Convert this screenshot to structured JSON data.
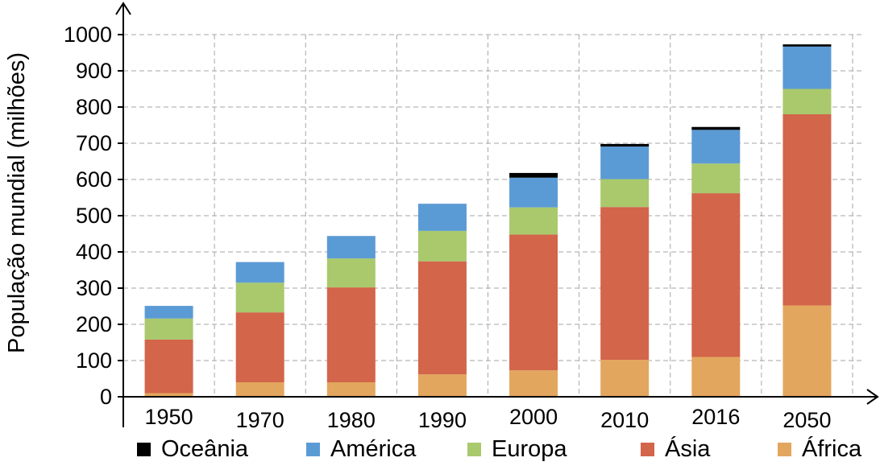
{
  "colors": {
    "Oceânia": "#000000",
    "América": "#5b9bd5",
    "Europa": "#a9c96c",
    "Ásia": "#d2654a",
    "África": "#e3a65e"
  },
  "chart_data": {
    "type": "bar",
    "stacked": true,
    "ylabel": "População mundial (milhões)",
    "ylim": [
      0,
      1000
    ],
    "yticks": [
      0,
      100,
      200,
      300,
      400,
      500,
      600,
      700,
      800,
      900,
      1000
    ],
    "grid": true,
    "legend_position": "bottom",
    "categories": [
      "1950",
      "1970",
      "1980",
      "1990",
      "2000",
      "2010",
      "2016",
      "2050"
    ],
    "series": [
      {
        "name": "África",
        "values": [
          10,
          40,
          40,
          62,
          73,
          102,
          110,
          252
        ]
      },
      {
        "name": "Ásia",
        "values": [
          148,
          193,
          262,
          312,
          375,
          422,
          452,
          528
        ]
      },
      {
        "name": "Europa",
        "values": [
          58,
          82,
          80,
          84,
          75,
          77,
          82,
          70
        ]
      },
      {
        "name": "América",
        "values": [
          35,
          57,
          62,
          75,
          82,
          90,
          93,
          117
        ]
      },
      {
        "name": "Oceânia",
        "values": [
          0,
          0,
          0,
          0,
          13,
          7,
          8,
          6
        ]
      }
    ],
    "legend_order": [
      "Oceânia",
      "América",
      "Europa",
      "Ásia",
      "África"
    ]
  }
}
